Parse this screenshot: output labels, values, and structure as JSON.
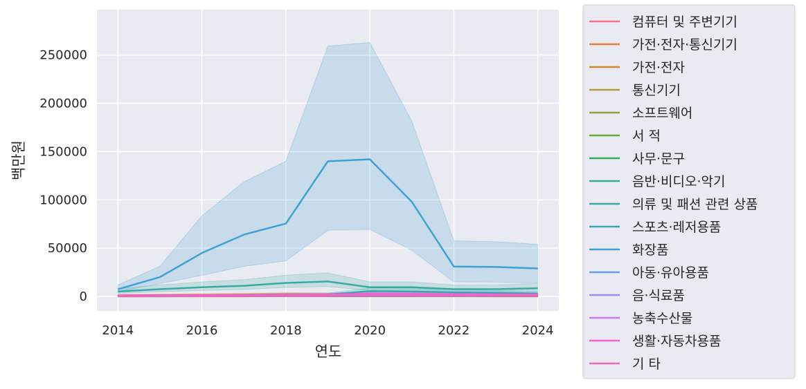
{
  "chart_data": {
    "type": "line",
    "xlabel": "연도",
    "ylabel": "백만원",
    "xlim": [
      2013.5,
      2024.5
    ],
    "ylim": [
      -15000,
      297000
    ],
    "x_ticks": [
      2014,
      2016,
      2018,
      2020,
      2022,
      2024
    ],
    "y_ticks": [
      0,
      50000,
      100000,
      150000,
      200000,
      250000
    ],
    "grid": true,
    "legend_placement": "outside-right",
    "x": [
      2014,
      2015,
      2016,
      2017,
      2018,
      2019,
      2020,
      2021,
      2022,
      2023,
      2024
    ],
    "series": [
      {
        "name": "컴퓨터 및 주변기기",
        "color": "#f77189",
        "values": [
          400,
          400,
          450,
          500,
          550,
          600,
          900,
          700,
          600,
          550,
          500
        ]
      },
      {
        "name": "가전·전자·통신기기",
        "color": "#e5803a",
        "values": [
          1200,
          1400,
          1600,
          1900,
          2400,
          2200,
          2600,
          2300,
          1800,
          1600,
          1400
        ]
      },
      {
        "name": "가전·전자",
        "color": "#d0892d",
        "values": [
          800,
          900,
          1000,
          1200,
          1500,
          1400,
          1700,
          1500,
          1200,
          1100,
          1000
        ]
      },
      {
        "name": "통신기기",
        "color": "#b19b38",
        "values": [
          300,
          350,
          400,
          450,
          500,
          550,
          600,
          550,
          500,
          450,
          400
        ]
      },
      {
        "name": "소프트웨어",
        "color": "#94a134",
        "values": [
          100,
          120,
          140,
          160,
          180,
          200,
          220,
          200,
          180,
          160,
          150
        ]
      },
      {
        "name": "서 적",
        "color": "#64ab37",
        "values": [
          600,
          650,
          700,
          750,
          800,
          850,
          1100,
          1000,
          900,
          850,
          800
        ]
      },
      {
        "name": "사무·문구",
        "color": "#35ae5c",
        "values": [
          200,
          220,
          240,
          260,
          300,
          320,
          380,
          350,
          320,
          300,
          280
        ]
      },
      {
        "name": "음반·비디오·악기",
        "color": "#36ad8b",
        "values": [
          150,
          160,
          170,
          180,
          200,
          220,
          250,
          230,
          210,
          200,
          190
        ]
      },
      {
        "name": "의류 및 패션 관련 상품",
        "color": "#38aaa1",
        "values": [
          5000,
          7500,
          9500,
          11000,
          14000,
          15500,
          9500,
          9500,
          7500,
          7500,
          8500
        ]
      },
      {
        "name": "스포츠·레저용품",
        "color": "#3aa6b5",
        "values": [
          900,
          1100,
          1300,
          1500,
          1900,
          2100,
          5500,
          5000,
          4200,
          3800,
          3200
        ]
      },
      {
        "name": "화장품",
        "color": "#3ea1d3",
        "values": [
          7500,
          20000,
          45000,
          64000,
          75500,
          140000,
          142000,
          98000,
          31000,
          30500,
          29000
        ]
      },
      {
        "name": "아동·유아용품",
        "color": "#6a9be8",
        "values": [
          500,
          550,
          600,
          650,
          700,
          750,
          900,
          850,
          800,
          750,
          700
        ]
      },
      {
        "name": "음·식료품",
        "color": "#9d90ee",
        "values": [
          700,
          800,
          900,
          1000,
          1200,
          1500,
          2500,
          2300,
          2100,
          2000,
          1900
        ]
      },
      {
        "name": "농축수산물",
        "color": "#c779ee",
        "values": [
          200,
          250,
          300,
          350,
          400,
          500,
          800,
          750,
          700,
          650,
          600
        ]
      },
      {
        "name": "생활·자동차용품",
        "color": "#f35fd4",
        "values": [
          1000,
          1100,
          1200,
          1400,
          1600,
          1900,
          2800,
          2600,
          2300,
          2100,
          2000
        ]
      },
      {
        "name": "기 타",
        "color": "#f068b4",
        "values": [
          300,
          320,
          340,
          360,
          400,
          450,
          600,
          550,
          500,
          480,
          460
        ]
      }
    ]
  }
}
